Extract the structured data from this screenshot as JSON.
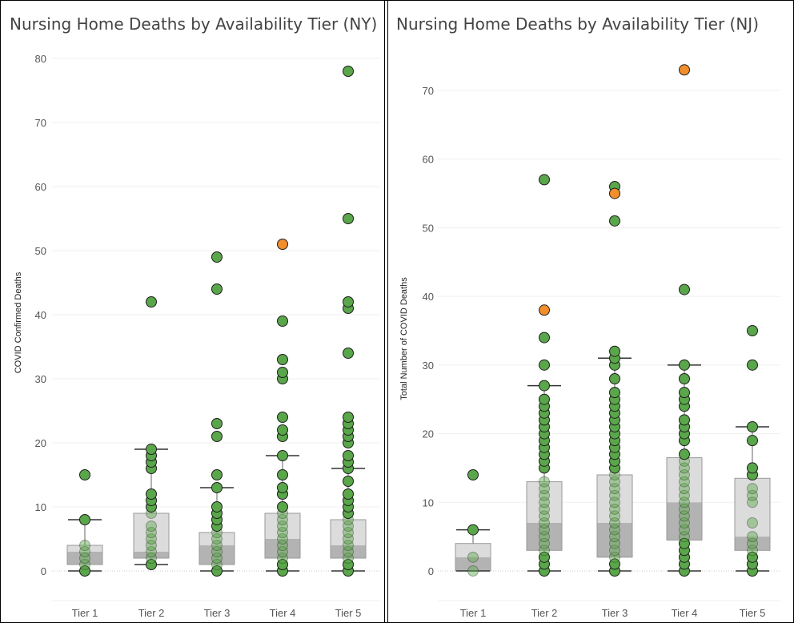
{
  "colors": {
    "green": "#5aa64a",
    "orange": "#f28e2b",
    "box_light": "#dcdcdc",
    "box_dark": "#b3b3b3",
    "grid": "#efefef",
    "text": "#555555"
  },
  "chart_data": [
    {
      "type": "box-scatter",
      "title": "Nursing Home Deaths by Availability Tier (NY)",
      "xlabel": "",
      "ylabel": "COVID Confirmed Deaths",
      "ylim": [
        -5,
        81
      ],
      "yticks": [
        0,
        10,
        20,
        30,
        40,
        50,
        60,
        70,
        80
      ],
      "categories": [
        "Tier 1",
        "Tier 2",
        "Tier 3",
        "Tier 4",
        "Tier 5"
      ],
      "grid": true,
      "boxes": [
        {
          "lower_whisker": 0,
          "q1": 1,
          "median": 3,
          "q3": 4,
          "upper_whisker": 8
        },
        {
          "lower_whisker": 1,
          "q1": 2,
          "median": 3,
          "q3": 9,
          "upper_whisker": 19
        },
        {
          "lower_whisker": 0,
          "q1": 1,
          "median": 4,
          "q3": 6,
          "upper_whisker": 13
        },
        {
          "lower_whisker": 0,
          "q1": 2,
          "median": 5,
          "q3": 9,
          "upper_whisker": 18
        },
        {
          "lower_whisker": 0,
          "q1": 2,
          "median": 4,
          "q3": 8,
          "upper_whisker": 16
        }
      ],
      "points": [
        [
          0,
          1,
          2,
          3,
          4,
          8,
          15
        ],
        [
          1,
          2,
          3,
          4,
          5,
          6,
          7,
          9,
          10,
          11,
          12,
          16,
          17,
          18,
          19,
          42
        ],
        [
          0,
          1,
          2,
          3,
          4,
          5,
          6,
          7,
          8,
          9,
          10,
          13,
          15,
          21,
          23,
          44,
          49
        ],
        [
          0,
          1,
          2,
          3,
          4,
          5,
          6,
          7,
          8,
          9,
          10,
          12,
          13,
          15,
          18,
          21,
          22,
          24,
          30,
          31,
          33,
          39
        ],
        [
          0,
          1,
          2,
          3,
          4,
          5,
          6,
          7,
          8,
          9,
          10,
          11,
          12,
          14,
          16,
          17,
          18,
          20,
          21,
          22,
          23,
          24,
          34,
          41,
          42,
          55,
          78
        ]
      ],
      "highlight": [
        {
          "category": "Tier 4",
          "value": 51
        }
      ]
    },
    {
      "type": "box-scatter",
      "title": "Nursing Home Deaths by Availability Tier (NJ)",
      "xlabel": "",
      "ylabel": "Total Number of COVID Deaths",
      "ylim": [
        -4.5,
        77
      ],
      "yticks": [
        0,
        10,
        20,
        30,
        40,
        50,
        60,
        70
      ],
      "categories": [
        "Tier 1",
        "Tier 2",
        "Tier 3",
        "Tier 4",
        "Tier 5"
      ],
      "grid": true,
      "boxes": [
        {
          "lower_whisker": 0,
          "q1": 0,
          "median": 2,
          "q3": 4,
          "upper_whisker": 6
        },
        {
          "lower_whisker": 0,
          "q1": 3,
          "median": 7,
          "q3": 13,
          "upper_whisker": 27
        },
        {
          "lower_whisker": 0,
          "q1": 2,
          "median": 7,
          "q3": 14,
          "upper_whisker": 31
        },
        {
          "lower_whisker": 0,
          "q1": 4.5,
          "median": 10,
          "q3": 16.5,
          "upper_whisker": 30
        },
        {
          "lower_whisker": 0,
          "q1": 3,
          "median": 5,
          "q3": 13.5,
          "upper_whisker": 21
        }
      ],
      "points": [
        [
          0,
          2,
          6,
          14
        ],
        [
          0,
          1,
          2,
          3,
          4,
          5,
          6,
          7,
          8,
          9,
          10,
          11,
          12,
          13,
          15,
          16,
          17,
          18,
          19,
          20,
          21,
          22,
          23,
          24,
          25,
          27,
          30,
          34,
          57
        ],
        [
          0,
          1,
          2,
          3,
          4,
          5,
          6,
          7,
          8,
          9,
          10,
          11,
          12,
          13,
          14,
          15,
          16,
          17,
          18,
          19,
          20,
          21,
          22,
          23,
          24,
          25,
          26,
          28,
          30,
          31,
          32,
          51,
          56
        ],
        [
          0,
          1,
          2,
          3,
          4,
          5,
          6,
          7,
          8,
          9,
          10,
          11,
          12,
          13,
          14,
          15,
          16,
          17,
          19,
          20,
          21,
          22,
          24,
          25,
          26,
          28,
          30,
          41
        ],
        [
          0,
          1,
          2,
          3,
          4,
          5,
          7,
          10,
          11,
          12,
          14,
          15,
          19,
          21,
          30,
          35
        ]
      ],
      "highlight": [
        {
          "category": "Tier 2",
          "value": 38
        },
        {
          "category": "Tier 3",
          "value": 55
        },
        {
          "category": "Tier 4",
          "value": 73
        }
      ]
    }
  ]
}
